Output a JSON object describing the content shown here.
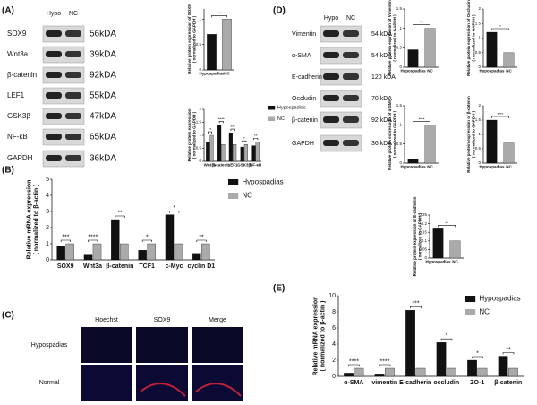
{
  "panel_labels": [
    "(A)",
    "(B)",
    "(C)",
    "(D)",
    "(E)"
  ],
  "blots": [
    {
      "headers": [
        "Hypo",
        "NC"
      ],
      "rows": [
        {
          "protein": "SOX9",
          "size": "56kDA"
        },
        {
          "protein": "Wnt3a",
          "size": "39kDA"
        },
        {
          "protein": "β-catenin",
          "size": "92kDA"
        },
        {
          "protein": "LEF1",
          "size": "55kDA"
        },
        {
          "protein": "GSK3β",
          "size": "47kDA"
        },
        {
          "protein": "NF-κB",
          "size": "65kDA"
        },
        {
          "protein": "GAPDH",
          "size": "36kDA"
        }
      ]
    },
    {
      "headers": [
        "Hypo",
        "NC"
      ],
      "rows": [
        {
          "protein": "Vimentin",
          "size": "54 kDA"
        },
        {
          "protein": "α-SMA",
          "size": "54 kDA"
        },
        {
          "protein": "E-cadherin",
          "size": "120 kDA"
        },
        {
          "protein": "Occludin",
          "size": "70 kDA"
        },
        {
          "protein": "β-catenin",
          "size": "92 kDA"
        },
        {
          "protein": "GAPDH",
          "size": "36 kDA"
        }
      ]
    }
  ],
  "images": {
    "columns": [
      "Hoechst",
      "SOX9",
      "Merge"
    ],
    "rows": [
      "Hypospadias",
      "Normal"
    ]
  },
  "chart_data": [
    {
      "type": "bar",
      "ylabel": [
        "Relative protein expression of SOX9",
        "( normalized to GAPDH )"
      ],
      "categories": [
        "Hypospadias",
        "NC"
      ],
      "values": [
        0.7,
        1
      ],
      "colors": [
        "#111111",
        "#aaaaaa"
      ],
      "ylim": [
        0,
        1.2
      ],
      "yticks": [
        0,
        0.5,
        1
      ],
      "significance": [
        "****"
      ]
    },
    {
      "type": "bar",
      "ylabel": [
        "Relative protein expression",
        "( normalized to GAPDH )"
      ],
      "categories": [
        "Wnt3a",
        "β-catenin",
        "LEF1",
        "GSK3β",
        "NF-κB"
      ],
      "series": [
        {
          "name": "Hypospadias",
          "color": "#111111",
          "values": [
            0.75,
            1.4,
            1.1,
            0.55,
            0.6
          ]
        },
        {
          "name": "NC",
          "color": "#aaaaaa",
          "values": [
            1,
            0.65,
            0.65,
            0.65,
            0.75
          ]
        }
      ],
      "ylim": [
        0,
        2
      ],
      "yticks": [
        0,
        0.5,
        1,
        1.5,
        2
      ],
      "significance": [
        "**",
        "****",
        "***",
        "*",
        "**"
      ]
    },
    {
      "type": "bar",
      "ylabel": [
        "Relative mRNA expression",
        "( normalized to β-actin )"
      ],
      "categories": [
        "SOX9",
        "Wnt3a",
        "β-catenin",
        "TCF1",
        "c-Myc",
        "cyclin D1"
      ],
      "series": [
        {
          "name": "Hypospadias",
          "color": "#111111",
          "values": [
            0.85,
            0.3,
            2.5,
            0.6,
            2.8,
            0.4
          ]
        },
        {
          "name": "NC",
          "color": "#aaaaaa",
          "values": [
            1,
            1,
            1,
            1,
            1,
            1
          ]
        }
      ],
      "ylim": [
        0,
        5
      ],
      "yticks": [
        0,
        1,
        2,
        3,
        4,
        5
      ],
      "significance": [
        "***",
        "****",
        "**",
        "*",
        "*",
        "**"
      ]
    },
    {
      "type": "bar",
      "ylabel": [
        "Relative protein expression of Vimentin",
        "( normalized to GAPDH )"
      ],
      "categories": [
        "Hypospadias",
        "NC"
      ],
      "values": [
        0.45,
        1
      ],
      "colors": [
        "#111111",
        "#aaaaaa"
      ],
      "ylim": [
        0,
        1.5
      ],
      "yticks": [
        0,
        0.5,
        1,
        1.5
      ],
      "significance": [
        "***"
      ]
    },
    {
      "type": "bar",
      "ylabel": [
        "Relative protein expression of Occludin",
        "( normalized to GAPDH )"
      ],
      "categories": [
        "Hypospadias",
        "NC"
      ],
      "values": [
        1.2,
        0.5
      ],
      "colors": [
        "#111111",
        "#aaaaaa"
      ],
      "ylim": [
        0,
        2
      ],
      "yticks": [
        0,
        0.5,
        1,
        1.5,
        2
      ],
      "significance": [
        "*"
      ]
    },
    {
      "type": "bar",
      "ylabel": [
        "Relative protein expression of α-SMA",
        "( normalized to GAPDH )"
      ],
      "categories": [
        "Hypospadias",
        "NC"
      ],
      "values": [
        0.1,
        1
      ],
      "colors": [
        "#111111",
        "#aaaaaa"
      ],
      "ylim": [
        0,
        1.5
      ],
      "yticks": [
        0,
        0.5,
        1,
        1.5
      ],
      "significance": [
        "****"
      ]
    },
    {
      "type": "bar",
      "ylabel": [
        "Relative protein expression of β-catenin",
        "( normalized to GAPDH )"
      ],
      "categories": [
        "Hypospadias",
        "NC"
      ],
      "values": [
        1.5,
        0.7
      ],
      "colors": [
        "#111111",
        "#aaaaaa"
      ],
      "ylim": [
        0,
        2
      ],
      "yticks": [
        0,
        0.5,
        1,
        1.5,
        2
      ],
      "significance": [
        "****"
      ]
    },
    {
      "type": "bar",
      "ylabel": [
        "Relative protein expression of E-cadherin",
        "( normalized to GAPDH )"
      ],
      "categories": [
        "Hypospadias",
        "NC"
      ],
      "values": [
        0.17,
        0.1
      ],
      "colors": [
        "#111111",
        "#aaaaaa"
      ],
      "ylim": [
        0,
        0.25
      ],
      "yticks": [
        0,
        0.05,
        0.1,
        0.15,
        0.2,
        0.25
      ],
      "significance": [
        "**"
      ]
    },
    {
      "type": "bar",
      "ylabel": [
        "Relative mRNA expression",
        "( normalized to β-actin )"
      ],
      "categories": [
        "α-SMA",
        "vimentin",
        "E-cadherin",
        "occludin",
        "ZO-1",
        "β-catenin"
      ],
      "series": [
        {
          "name": "Hypospadias",
          "color": "#111111",
          "values": [
            0.4,
            0.3,
            8.2,
            4.2,
            2,
            2.5
          ]
        },
        {
          "name": "NC",
          "color": "#aaaaaa",
          "values": [
            1,
            1,
            1,
            1,
            1,
            1
          ]
        }
      ],
      "ylim": [
        0,
        10
      ],
      "yticks": [
        0,
        2,
        4,
        6,
        8,
        10
      ],
      "significance": [
        "****",
        "****",
        "***",
        "*",
        "*",
        "**"
      ]
    }
  ]
}
